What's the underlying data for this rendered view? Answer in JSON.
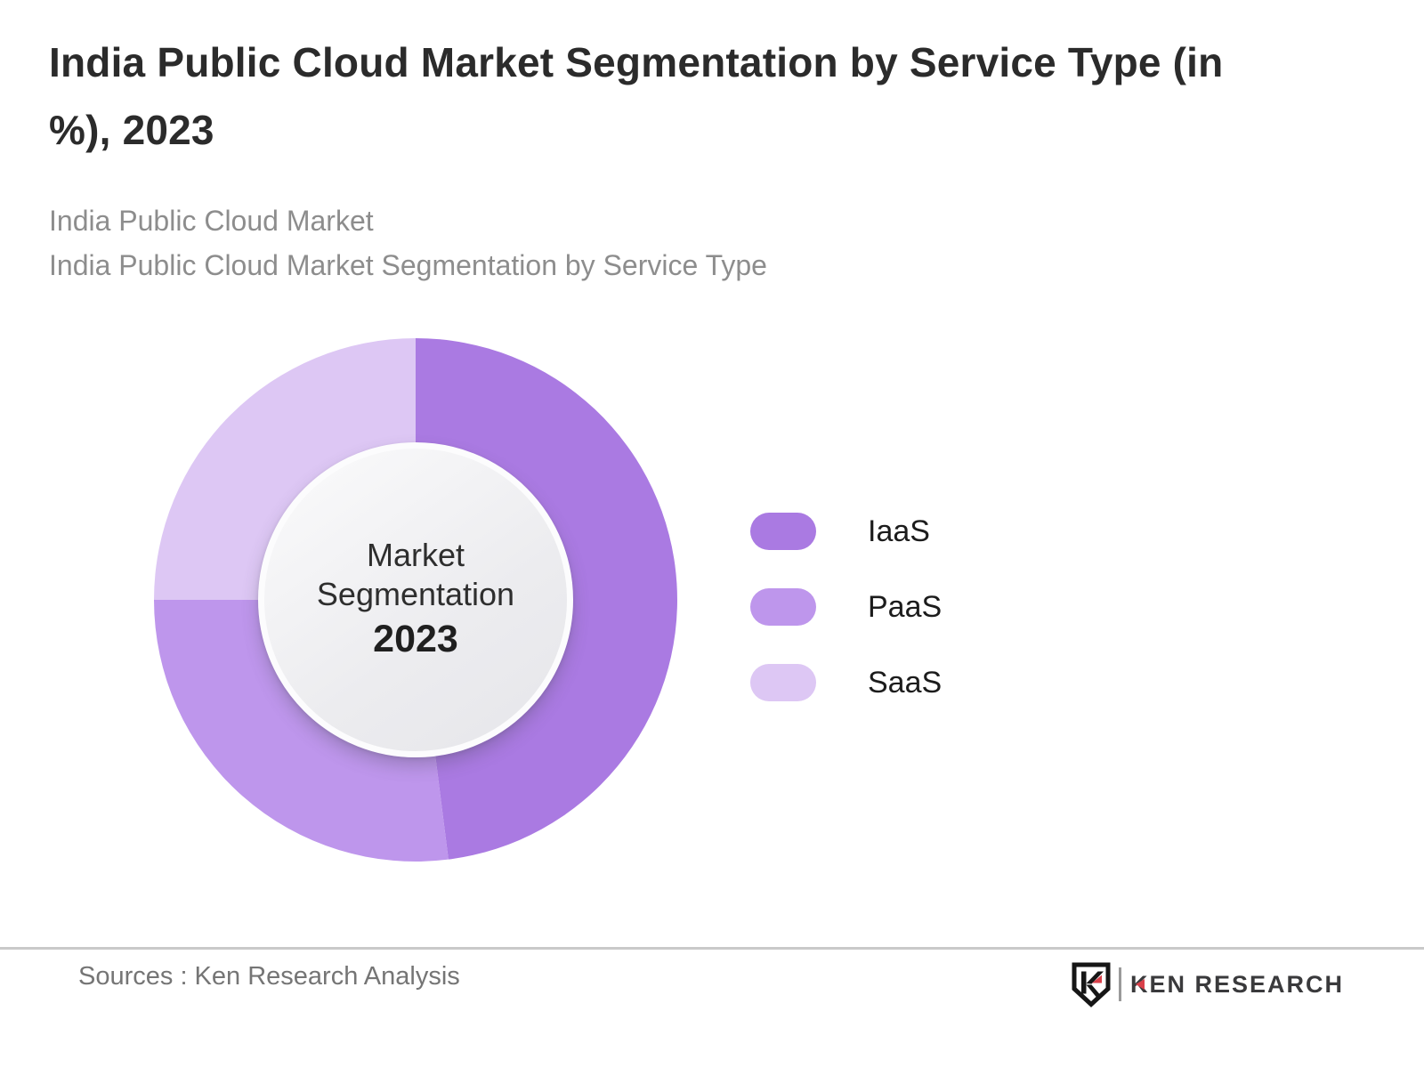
{
  "header": {
    "title_line1": "India Public Cloud Market Segmentation by Service Type (in",
    "title_line2": "%), 2023",
    "subtitle_line1": "India Public Cloud Market",
    "subtitle_line2": "India Public Cloud Market Segmentation by Service Type"
  },
  "chart_data": {
    "type": "pie",
    "variant": "donut",
    "title": "India Public Cloud Market Segmentation by Service Type (in %), 2023",
    "categories": [
      "IaaS",
      "PaaS",
      "SaaS"
    ],
    "values": [
      48,
      27,
      25
    ],
    "unit": "%",
    "colors": [
      "#aa7ae2",
      "#be96ec",
      "#ddc7f4"
    ],
    "start_angle_deg": 0,
    "direction": "clockwise",
    "data_labels_shown": false,
    "legend_position": "right",
    "center_label": "Market Segmentation",
    "center_year": "2023"
  },
  "footer": {
    "sources": "Sources : Ken Research Analysis",
    "logo_text": "KEN RESEARCH"
  },
  "theme": {
    "iaas_color": "#aa7ae2",
    "paas_color": "#be96ec",
    "saas_color": "#ddc7f4",
    "title_color": "#2b2b2b",
    "subtitle_color": "#8d8d8d",
    "divider_color": "#c9c9c9",
    "logo_red": "#d9404a"
  }
}
